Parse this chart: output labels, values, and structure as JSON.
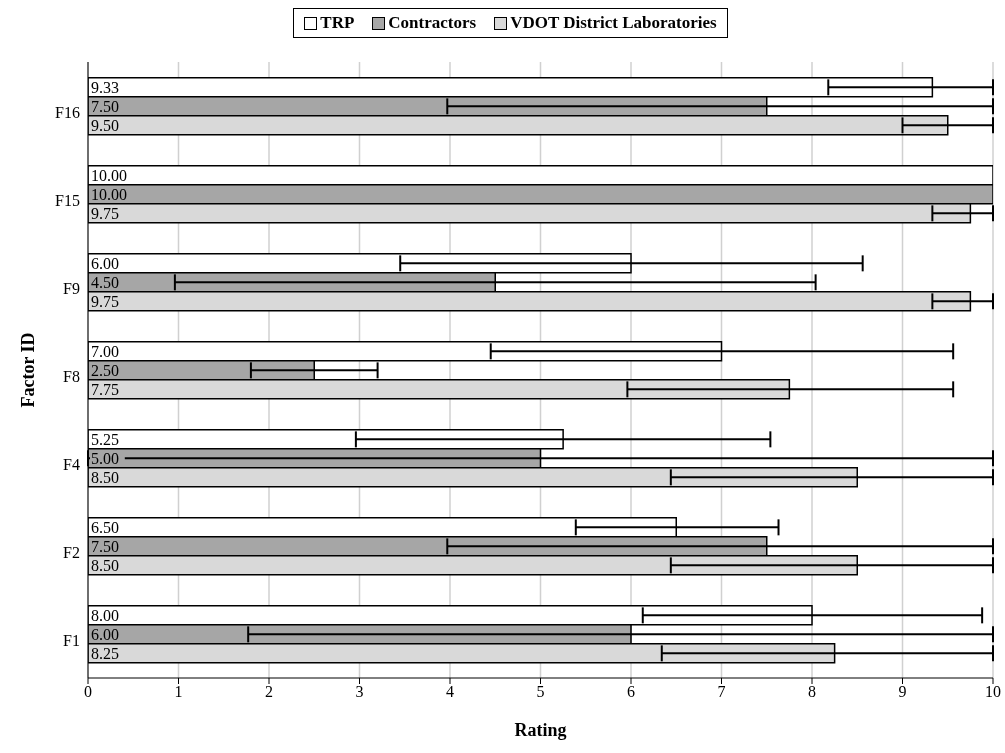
{
  "chart_data": {
    "type": "bar",
    "orientation": "horizontal",
    "xlabel": "Rating",
    "ylabel": "Factor ID",
    "categories": [
      "F16",
      "F15",
      "F9",
      "F8",
      "F4",
      "F2",
      "F1"
    ],
    "series": [
      {
        "name": "TRP",
        "color": "#ffffff",
        "values": [
          9.33,
          10,
          6,
          7,
          5.25,
          6.5,
          8
        ],
        "value_labels": [
          "9.33",
          "10.00",
          "6.00",
          "7.00",
          "5.25",
          "6.50",
          "8.00"
        ],
        "errors": [
          [
            8.18,
            10
          ],
          null,
          [
            3.45,
            8.56
          ],
          [
            4.45,
            9.56
          ],
          [
            2.96,
            7.54
          ],
          [
            5.39,
            7.63
          ],
          [
            6.13,
            9.88
          ]
        ]
      },
      {
        "name": "Contractors",
        "color": "#a6a6a6",
        "values": [
          7.5,
          10,
          4.5,
          2.5,
          5,
          7.5,
          6
        ],
        "value_labels": [
          "7.50",
          "10.00",
          "4.50",
          "2.50",
          "5.00",
          "7.50",
          "6.00"
        ],
        "errors": [
          [
            3.97,
            10
          ],
          null,
          [
            0.96,
            8.04
          ],
          [
            1.8,
            3.2
          ],
          [
            0,
            10
          ],
          [
            3.97,
            10
          ],
          [
            1.77,
            10
          ]
        ]
      },
      {
        "name": "VDOT District Laboratories",
        "color": "#d9d9d9",
        "values": [
          9.5,
          9.75,
          9.75,
          7.75,
          8.5,
          8.5,
          8.25
        ],
        "value_labels": [
          "9.50",
          "9.75",
          "9.75",
          "7.75",
          "8.50",
          "8.50",
          "8.25"
        ],
        "errors": [
          [
            9,
            10
          ],
          [
            9.33,
            10
          ],
          [
            9.33,
            10
          ],
          [
            5.96,
            9.56
          ],
          [
            6.44,
            10
          ],
          [
            6.44,
            10
          ],
          [
            6.34,
            10
          ]
        ]
      }
    ],
    "xlim": [
      0,
      10
    ],
    "xticks": [
      0,
      1,
      2,
      3,
      4,
      5,
      6,
      7,
      8,
      9,
      10
    ],
    "grid": "x",
    "legend": "top"
  }
}
